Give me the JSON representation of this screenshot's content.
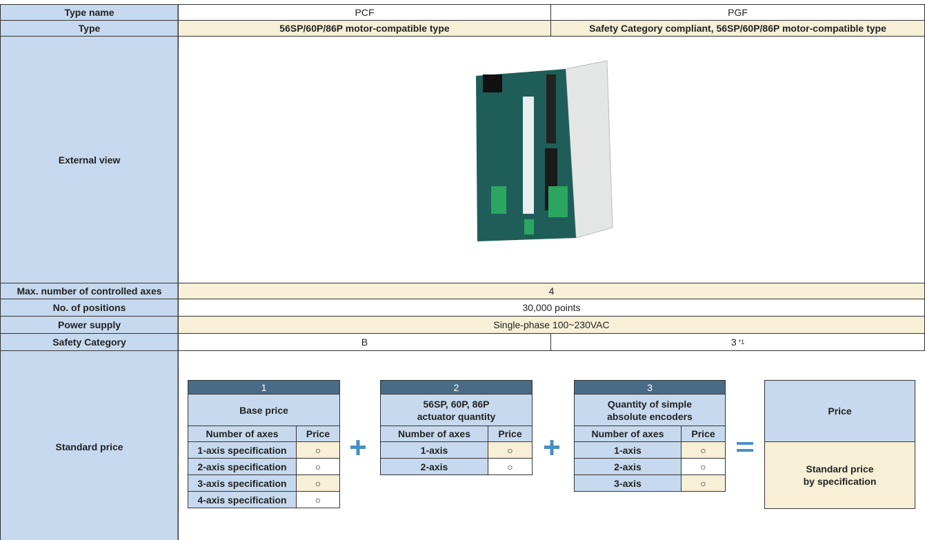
{
  "table": {
    "rows": [
      {
        "label": "Type name",
        "cells": [
          "PCF",
          "PGF"
        ]
      },
      {
        "label": "Type",
        "cells": [
          "56SP/60P/86P motor-compatible type",
          "Safety Category compliant, 56SP/60P/86P motor-compatible type"
        ]
      },
      {
        "label": "External view"
      },
      {
        "label": "Max. number of controlled axes",
        "cells": [
          "4"
        ]
      },
      {
        "label": "No. of positions",
        "cells": [
          "30,000 points"
        ]
      },
      {
        "label": "Power supply",
        "cells": [
          "Single-phase 100~230VAC"
        ]
      },
      {
        "label": "Safety Category",
        "cells": [
          "B",
          "3"
        ],
        "note": "*1"
      },
      {
        "label": "Standard price"
      }
    ]
  },
  "price": {
    "blocks": [
      {
        "number": "1",
        "title": "Base price",
        "columns": [
          "Number of axes",
          "Price"
        ],
        "rows": [
          [
            "1-axis specification",
            "○"
          ],
          [
            "2-axis specification",
            "○"
          ],
          [
            "3-axis specification",
            "○"
          ],
          [
            "4-axis specification",
            "○"
          ]
        ]
      },
      {
        "number": "2",
        "title": "56SP, 60P, 86P\nactuator quantity",
        "columns": [
          "Number of axes",
          "Price"
        ],
        "rows": [
          [
            "1-axis",
            "○"
          ],
          [
            "2-axis",
            "○"
          ]
        ]
      },
      {
        "number": "3",
        "title": "Quantity of simple\nabsolute encoders",
        "columns": [
          "Number of axes",
          "Price"
        ],
        "rows": [
          [
            "1-axis",
            "○"
          ],
          [
            "2-axis",
            "○"
          ],
          [
            "3-axis",
            "○"
          ]
        ]
      }
    ],
    "result": {
      "title": "Price",
      "body": "Standard price\nby specification"
    }
  }
}
